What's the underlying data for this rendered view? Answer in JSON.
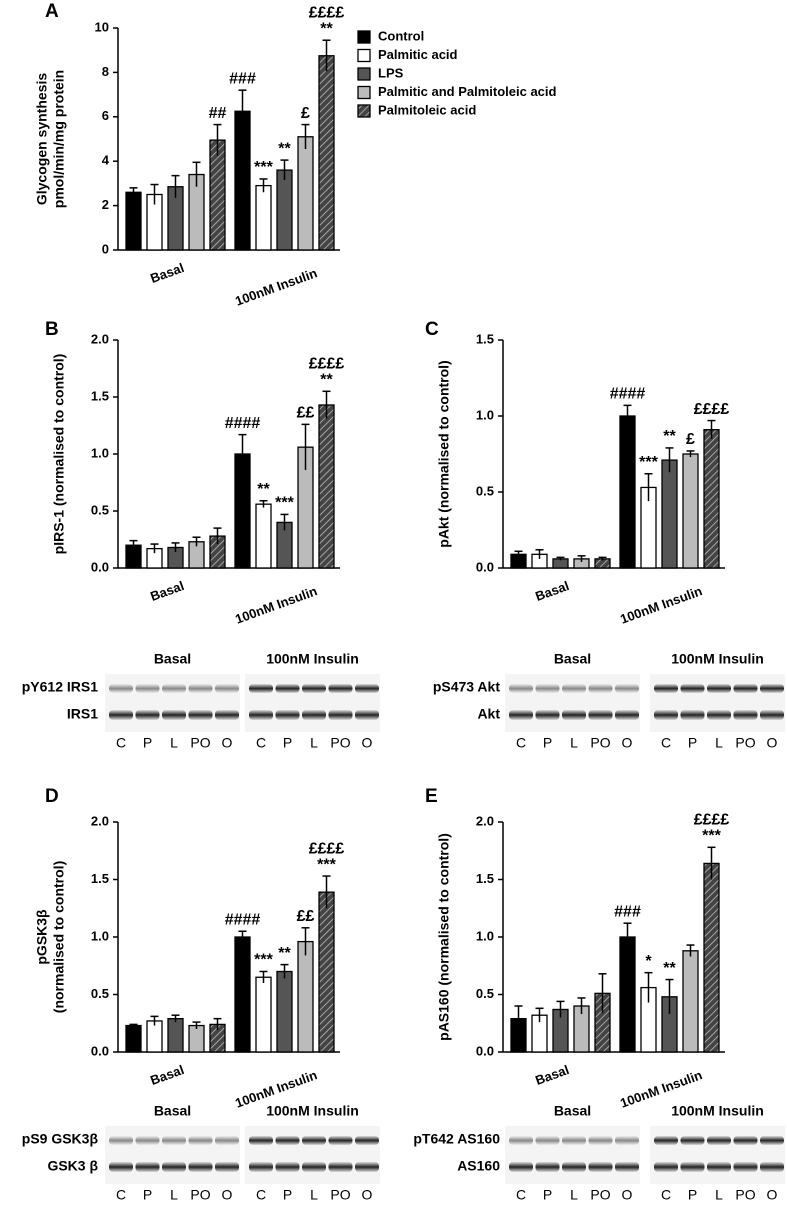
{
  "chart_data": [
    {
      "type": "bar",
      "panel": "A",
      "y_label": [
        "Glycogen synthesis",
        "pmol/min/mg protein"
      ],
      "categories": [
        "Basal",
        "100nM Insulin"
      ],
      "ylim": [
        0,
        10
      ],
      "yticks": [
        0,
        2,
        4,
        6,
        8,
        10
      ],
      "legend": "right",
      "series": [
        {
          "name": "Control",
          "color": "#000000",
          "values": [
            2.6,
            6.25
          ],
          "errors": [
            0.2,
            0.95
          ],
          "annotations": [
            null,
            [
              "###"
            ]
          ]
        },
        {
          "name": "Palmitic acid",
          "color": "#ffffff",
          "values": [
            2.5,
            2.9
          ],
          "errors": [
            0.45,
            0.3
          ],
          "annotations": [
            null,
            [
              "***"
            ]
          ]
        },
        {
          "name": "LPS",
          "color": "#555555",
          "values": [
            2.85,
            3.6
          ],
          "errors": [
            0.5,
            0.45
          ],
          "annotations": [
            null,
            [
              "**"
            ]
          ]
        },
        {
          "name": "Palmitic and Palmitoleic acid",
          "color": "#bbbbbb",
          "values": [
            3.4,
            5.1
          ],
          "errors": [
            0.55,
            0.55
          ],
          "annotations": [
            null,
            [
              "£"
            ]
          ]
        },
        {
          "name": "Palmitoleic acid",
          "color": "#444444",
          "hatch": true,
          "values": [
            4.95,
            8.75
          ],
          "errors": [
            0.7,
            0.7
          ],
          "annotations": [
            [
              "##"
            ],
            [
              "££££",
              "**"
            ]
          ]
        }
      ]
    },
    {
      "type": "bar",
      "panel": "B",
      "y_label": [
        "pIRS-1 (normalised to control)"
      ],
      "categories": [
        "Basal",
        "100nM Insulin"
      ],
      "ylim": [
        0,
        2
      ],
      "yticks": [
        {
          "value": 0,
          "label": "0.0"
        },
        0.5,
        {
          "value": 1,
          "label": "1.0"
        },
        1.5,
        {
          "value": 2,
          "label": "2.0"
        }
      ],
      "series": [
        {
          "color": "#000000",
          "values": [
            0.2,
            1.0
          ],
          "errors": [
            0.04,
            0.17
          ],
          "annotations": [
            null,
            [
              "####"
            ]
          ]
        },
        {
          "color": "#ffffff",
          "values": [
            0.17,
            0.56
          ],
          "errors": [
            0.04,
            0.03
          ],
          "annotations": [
            null,
            [
              "**"
            ]
          ]
        },
        {
          "color": "#555555",
          "values": [
            0.18,
            0.4
          ],
          "errors": [
            0.04,
            0.07
          ],
          "annotations": [
            null,
            [
              "***"
            ]
          ]
        },
        {
          "color": "#bbbbbb",
          "values": [
            0.23,
            1.06
          ],
          "errors": [
            0.04,
            0.2
          ],
          "annotations": [
            null,
            [
              "££"
            ]
          ]
        },
        {
          "color": "#444444",
          "hatch": true,
          "values": [
            0.28,
            1.43
          ],
          "errors": [
            0.07,
            0.12
          ],
          "annotations": [
            null,
            [
              "££££",
              "**"
            ]
          ]
        }
      ]
    },
    {
      "type": "bar",
      "panel": "C",
      "y_label": [
        "pAkt (normalised to control)"
      ],
      "categories": [
        "Basal",
        "100nM Insulin"
      ],
      "ylim": [
        0,
        1.5
      ],
      "yticks": [
        {
          "value": 0,
          "label": "0.0"
        },
        0.5,
        {
          "value": 1,
          "label": "1.0"
        },
        1.5
      ],
      "series": [
        {
          "color": "#000000",
          "values": [
            0.09,
            1.0
          ],
          "errors": [
            0.02,
            0.07
          ],
          "annotations": [
            null,
            [
              "####"
            ]
          ]
        },
        {
          "color": "#ffffff",
          "values": [
            0.09,
            0.53
          ],
          "errors": [
            0.03,
            0.09
          ],
          "annotations": [
            null,
            [
              "***"
            ]
          ]
        },
        {
          "color": "#555555",
          "values": [
            0.06,
            0.71
          ],
          "errors": [
            0.01,
            0.08
          ],
          "annotations": [
            null,
            [
              "**"
            ]
          ]
        },
        {
          "color": "#bbbbbb",
          "values": [
            0.06,
            0.75
          ],
          "errors": [
            0.02,
            0.02
          ],
          "annotations": [
            null,
            [
              "£"
            ]
          ]
        },
        {
          "color": "#444444",
          "hatch": true,
          "values": [
            0.06,
            0.91
          ],
          "errors": [
            0.01,
            0.06
          ],
          "annotations": [
            null,
            [
              "££££"
            ]
          ]
        }
      ]
    },
    {
      "type": "bar",
      "panel": "D",
      "y_label": [
        "pGSK3β",
        "(normalised to control)"
      ],
      "categories": [
        "Basal",
        "100nM Insulin"
      ],
      "ylim": [
        0,
        2
      ],
      "yticks": [
        {
          "value": 0,
          "label": "0.0"
        },
        0.5,
        {
          "value": 1,
          "label": "1.0"
        },
        1.5,
        {
          "value": 2,
          "label": "2.0"
        }
      ],
      "series": [
        {
          "color": "#000000",
          "values": [
            0.23,
            1.0
          ],
          "errors": [
            0.01,
            0.05
          ],
          "annotations": [
            null,
            [
              "####"
            ]
          ]
        },
        {
          "color": "#ffffff",
          "values": [
            0.27,
            0.65
          ],
          "errors": [
            0.04,
            0.05
          ],
          "annotations": [
            null,
            [
              "***"
            ]
          ]
        },
        {
          "color": "#555555",
          "values": [
            0.29,
            0.7
          ],
          "errors": [
            0.03,
            0.06
          ],
          "annotations": [
            null,
            [
              "**"
            ]
          ]
        },
        {
          "color": "#bbbbbb",
          "values": [
            0.23,
            0.96
          ],
          "errors": [
            0.03,
            0.12
          ],
          "annotations": [
            null,
            [
              "££"
            ]
          ]
        },
        {
          "color": "#444444",
          "hatch": true,
          "values": [
            0.24,
            1.39
          ],
          "errors": [
            0.05,
            0.14
          ],
          "annotations": [
            null,
            [
              "££££",
              "***"
            ]
          ]
        }
      ]
    },
    {
      "type": "bar",
      "panel": "E",
      "y_label": [
        "pAS160 (normalised to control)"
      ],
      "categories": [
        "Basal",
        "100nM Insulin"
      ],
      "ylim": [
        0,
        2
      ],
      "yticks": [
        {
          "value": 0,
          "label": "0.0"
        },
        0.5,
        {
          "value": 1,
          "label": "1.0"
        },
        1.5,
        {
          "value": 2,
          "label": "2.0"
        }
      ],
      "series": [
        {
          "color": "#000000",
          "values": [
            0.29,
            1.0
          ],
          "errors": [
            0.11,
            0.12
          ],
          "annotations": [
            null,
            [
              "###"
            ]
          ]
        },
        {
          "color": "#ffffff",
          "values": [
            0.32,
            0.56
          ],
          "errors": [
            0.06,
            0.13
          ],
          "annotations": [
            null,
            [
              "*"
            ]
          ]
        },
        {
          "color": "#555555",
          "values": [
            0.37,
            0.48
          ],
          "errors": [
            0.07,
            0.15
          ],
          "annotations": [
            null,
            [
              "**"
            ]
          ]
        },
        {
          "color": "#bbbbbb",
          "values": [
            0.4,
            0.88
          ],
          "errors": [
            0.07,
            0.05
          ],
          "annotations": [
            null,
            null
          ]
        },
        {
          "color": "#444444",
          "hatch": true,
          "values": [
            0.51,
            1.64
          ],
          "errors": [
            0.17,
            0.14
          ],
          "annotations": [
            null,
            [
              "££££",
              "***"
            ]
          ]
        }
      ]
    }
  ],
  "blots": [
    {
      "groups": [
        "Basal",
        "100nM Insulin"
      ],
      "rows": [
        "pY612 IRS1",
        "IRS1"
      ],
      "lanes": [
        "C",
        "P",
        "L",
        "PO",
        "O",
        "C",
        "P",
        "L",
        "PO",
        "O"
      ]
    },
    {
      "groups": [
        "Basal",
        "100nM Insulin"
      ],
      "rows": [
        "pS473 Akt",
        "Akt"
      ],
      "lanes": [
        "C",
        "P",
        "L",
        "PO",
        "O",
        "C",
        "P",
        "L",
        "PO",
        "O"
      ]
    },
    {
      "groups": [
        "Basal",
        "100nM Insulin"
      ],
      "rows": [
        "pS9 GSK3β",
        "GSK3 β"
      ],
      "lanes": [
        "C",
        "P",
        "L",
        "PO",
        "O",
        "C",
        "P",
        "L",
        "PO",
        "O"
      ]
    },
    {
      "groups": [
        "Basal",
        "100nM Insulin"
      ],
      "rows": [
        "pT642 AS160",
        "AS160"
      ],
      "lanes": [
        "C",
        "P",
        "L",
        "PO",
        "O",
        "C",
        "P",
        "L",
        "PO",
        "O"
      ]
    }
  ]
}
